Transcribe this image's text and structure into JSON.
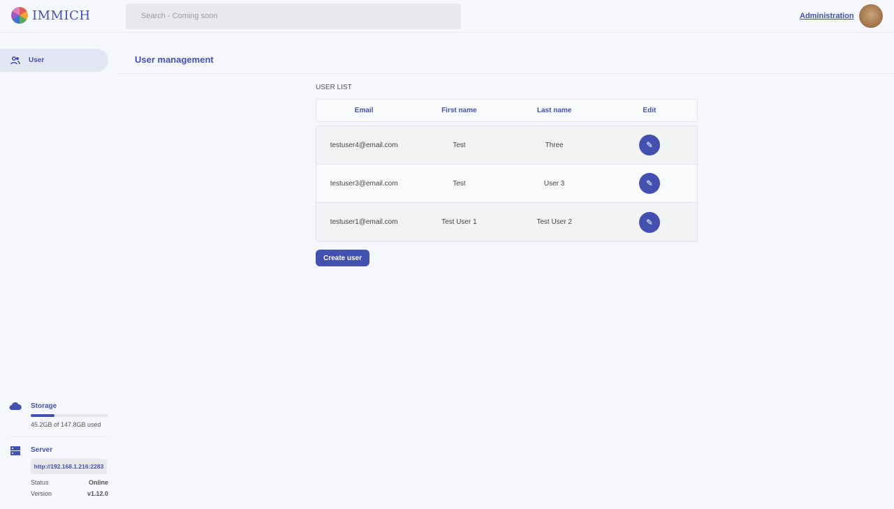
{
  "header": {
    "logo_text": "IMMICH",
    "search_placeholder": "Search - Coming soon",
    "admin_link": "Administration"
  },
  "sidebar": {
    "items": [
      {
        "label": "User",
        "icon": "users-icon"
      }
    ]
  },
  "storage": {
    "label": "Storage",
    "used_text": "45.2GB of 147.8GB used",
    "used_fraction": 0.306
  },
  "server": {
    "label": "Server",
    "url": "http://192.168.1.216:2283",
    "status_label": "Status",
    "status": "Online",
    "version_label": "Version",
    "version": "v1.12.0"
  },
  "main": {
    "title": "User management",
    "section": "USER LIST",
    "columns": [
      "Email",
      "First name",
      "Last name",
      "Edit"
    ],
    "rows": [
      [
        "testuser4@email.com",
        "Test",
        "Three"
      ],
      [
        "testuser3@email.com",
        "Test",
        "User 3"
      ],
      [
        "testuser1@email.com",
        "Test User 1",
        "Test User 2"
      ]
    ],
    "create_label": "Create user"
  },
  "colors": {
    "accent": "#4250af"
  }
}
